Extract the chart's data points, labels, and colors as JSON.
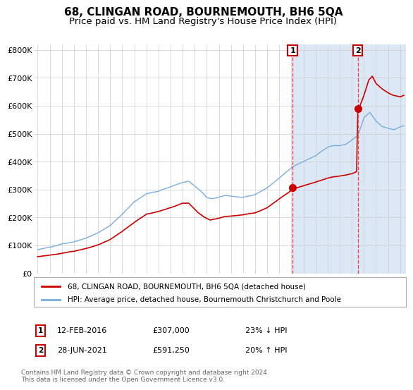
{
  "title": "68, CLINGAN ROAD, BOURNEMOUTH, BH6 5QA",
  "subtitle": "Price paid vs. HM Land Registry's House Price Index (HPI)",
  "title_fontsize": 11,
  "subtitle_fontsize": 9.5,
  "ylim": [
    0,
    820000
  ],
  "xlim_start": 1994.7,
  "xlim_end": 2025.5,
  "yticks": [
    0,
    100000,
    200000,
    300000,
    400000,
    500000,
    600000,
    700000,
    800000
  ],
  "ytick_labels": [
    "£0",
    "£100K",
    "£200K",
    "£300K",
    "£400K",
    "£500K",
    "£600K",
    "£700K",
    "£800K"
  ],
  "xticks": [
    1995,
    1996,
    1997,
    1998,
    1999,
    2000,
    2001,
    2002,
    2003,
    2004,
    2005,
    2006,
    2007,
    2008,
    2009,
    2010,
    2011,
    2012,
    2013,
    2014,
    2015,
    2016,
    2017,
    2018,
    2019,
    2020,
    2021,
    2022,
    2023,
    2024,
    2025
  ],
  "hpi_color": "#7aaddd",
  "price_color": "#cc0000",
  "vline_color": "#ee4444",
  "grid_color": "#cccccc",
  "span_color": "#dce8f5",
  "ann1_x": 2016.1,
  "ann1_y": 307000,
  "ann2_x": 2021.49,
  "ann2_y": 591250,
  "legend1": "68, CLINGAN ROAD, BOURNEMOUTH, BH6 5QA (detached house)",
  "legend2": "HPI: Average price, detached house, Bournemouth Christchurch and Poole",
  "row1_date": "12-FEB-2016",
  "row1_price": "£307,000",
  "row1_pct": "23% ↓ HPI",
  "row2_date": "28-JUN-2021",
  "row2_price": "£591,250",
  "row2_pct": "20% ↑ HPI",
  "footnote": "Contains HM Land Registry data © Crown copyright and database right 2024.\nThis data is licensed under the Open Government Licence v3.0."
}
